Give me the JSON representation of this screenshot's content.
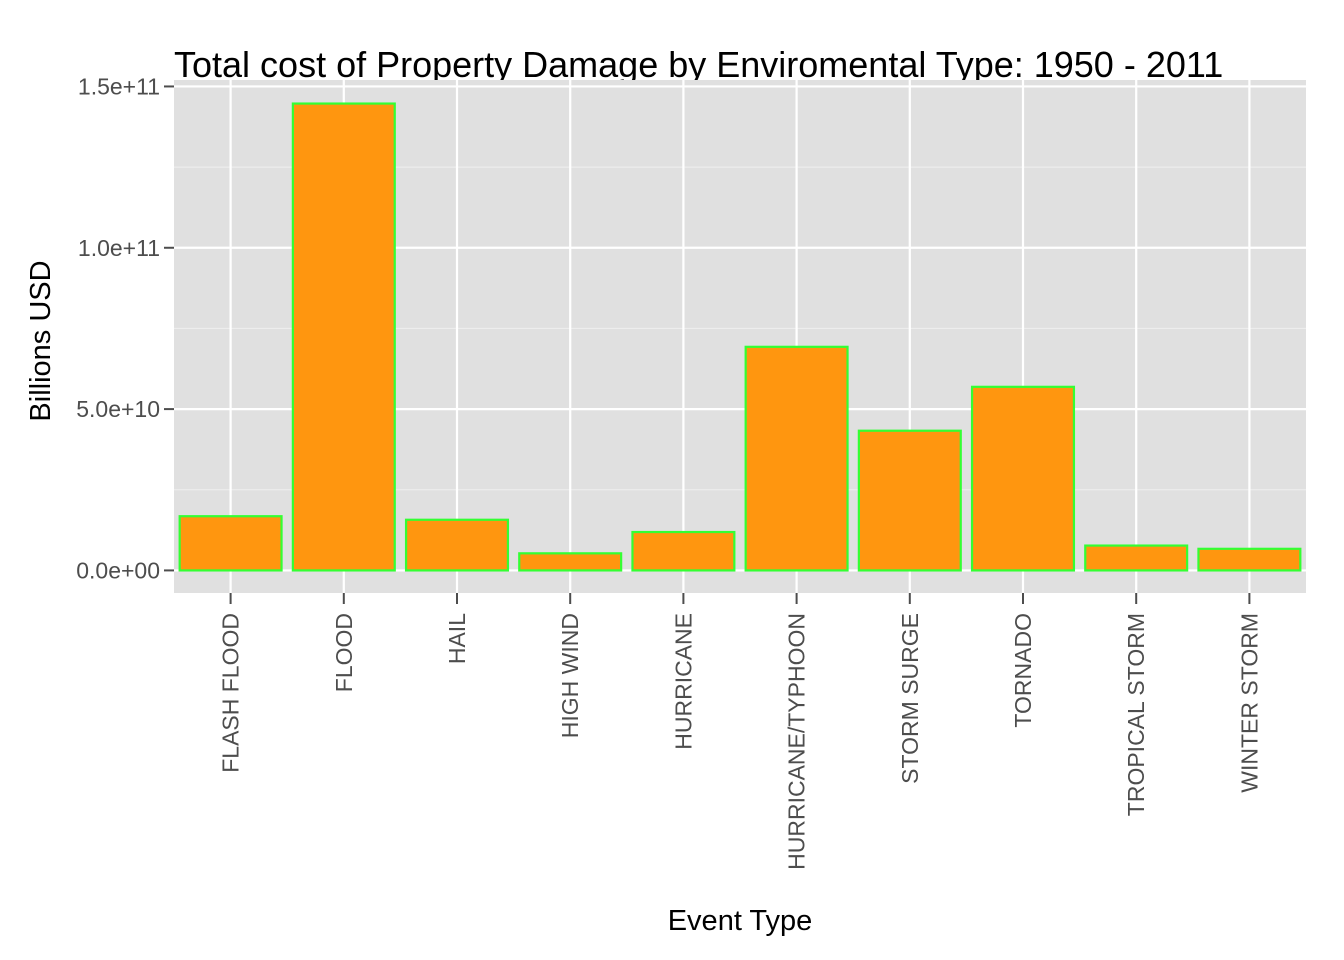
{
  "chart_data": {
    "type": "bar",
    "title": "Total cost of Property Damage by Enviromental Type: 1950 - 2011",
    "xlabel": "Event Type",
    "ylabel": "Billions USD",
    "categories": [
      "FLASH FLOOD",
      "FLOOD",
      "HAIL",
      "HIGH WIND",
      "HURRICANE",
      "HURRICANE/TYPHOON",
      "STORM SURGE",
      "TORNADO",
      "TROPICAL STORM",
      "WINTER STORM"
    ],
    "values": [
      16800000000,
      144700000000,
      15700000000,
      5300000000,
      11900000000,
      69300000000,
      43300000000,
      56900000000,
      7700000000,
      6700000000
    ],
    "ylim": [
      -7000000000,
      152000000000
    ],
    "yticks": [
      0,
      50000000000,
      100000000000,
      150000000000
    ],
    "ytick_labels": [
      "0.0e+00",
      "5.0e+10",
      "1.0e+11",
      "1.5e+11"
    ],
    "grid": true,
    "legend": "none",
    "colors": {
      "bar_fill": "#FF960F",
      "bar_outline": "#33FF33",
      "panel_background": "#E0E0E0",
      "grid_major": "#FFFFFF",
      "grid_minor": "#EDEDED",
      "tick_color": "#4D4D4D"
    }
  }
}
